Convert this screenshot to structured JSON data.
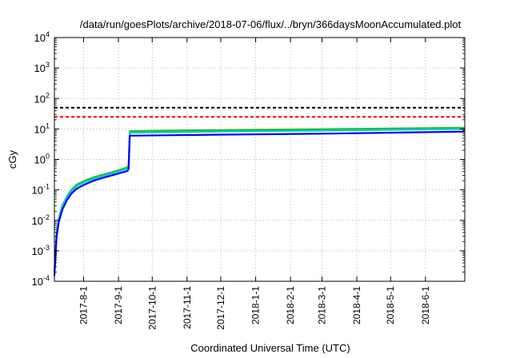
{
  "chart_data": {
    "type": "line",
    "title": "/data/run/goesPlots/archive/2018-07-06/flux/../bryn/366daysMoonAccumulated.plot",
    "xlabel": "Coordinated Universal Time (UTC)",
    "ylabel": "cGy",
    "yscale": "log",
    "ylim": [
      0.0001,
      10000
    ],
    "xlim": [
      "2017-07-06",
      "2018-07-06"
    ],
    "grid": true,
    "y_ticks": [
      {
        "base": "10",
        "exp": "-4",
        "value": 0.0001
      },
      {
        "base": "10",
        "exp": "-3",
        "value": 0.001
      },
      {
        "base": "10",
        "exp": "-2",
        "value": 0.01
      },
      {
        "base": "10",
        "exp": "-1",
        "value": 0.1
      },
      {
        "base": "10",
        "exp": "0",
        "value": 1
      },
      {
        "base": "10",
        "exp": "1",
        "value": 10
      },
      {
        "base": "10",
        "exp": "2",
        "value": 100
      },
      {
        "base": "10",
        "exp": "3",
        "value": 1000
      },
      {
        "base": "10",
        "exp": "4",
        "value": 10000
      }
    ],
    "x_ticks": [
      "2017-8-1",
      "2017-9-1",
      "2017-10-1",
      "2017-11-1",
      "2017-12-1",
      "2018-1-1",
      "2018-2-1",
      "2018-3-1",
      "2018-4-1",
      "2018-5-1",
      "2018-6-1"
    ],
    "reference_lines": [
      {
        "value": 50,
        "color": "#000000",
        "style": "dashed"
      },
      {
        "value": 25,
        "color": "#ff0000",
        "style": "dashed"
      }
    ],
    "series": [
      {
        "color": "#22bb22",
        "x": [
          "2017-07-06",
          "2017-07-08",
          "2017-07-10",
          "2017-07-13",
          "2017-07-17",
          "2017-07-21",
          "2017-07-26",
          "2017-08-02",
          "2017-08-10",
          "2017-08-20",
          "2017-08-30",
          "2017-09-09",
          "2017-09-10",
          "2017-09-11",
          "2017-10-10",
          "2017-12-01",
          "2018-03-01",
          "2018-07-06"
        ],
        "y": [
          0.0002,
          0.004,
          0.012,
          0.03,
          0.06,
          0.1,
          0.15,
          0.2,
          0.26,
          0.33,
          0.42,
          0.55,
          0.7,
          8.5,
          8.8,
          9.2,
          9.8,
          11
        ]
      },
      {
        "color": "#00cccc",
        "x": [
          "2017-07-06",
          "2017-07-08",
          "2017-07-10",
          "2017-07-13",
          "2017-07-17",
          "2017-07-21",
          "2017-07-26",
          "2017-08-02",
          "2017-08-10",
          "2017-08-20",
          "2017-08-30",
          "2017-09-09",
          "2017-09-10",
          "2017-09-11",
          "2017-10-10",
          "2017-12-01",
          "2018-03-01",
          "2018-07-06"
        ],
        "y": [
          0.00018,
          0.0035,
          0.011,
          0.027,
          0.055,
          0.09,
          0.135,
          0.18,
          0.23,
          0.3,
          0.38,
          0.5,
          0.62,
          7.5,
          7.8,
          8.2,
          8.8,
          10
        ]
      },
      {
        "color": "#0000ff",
        "x": [
          "2017-07-06",
          "2017-07-08",
          "2017-07-10",
          "2017-07-13",
          "2017-07-17",
          "2017-07-21",
          "2017-07-26",
          "2017-08-02",
          "2017-08-10",
          "2017-08-20",
          "2017-08-30",
          "2017-09-09",
          "2017-09-10",
          "2017-09-11",
          "2017-10-10",
          "2017-12-01",
          "2018-03-01",
          "2018-07-06"
        ],
        "y": [
          0.00015,
          0.003,
          0.009,
          0.022,
          0.045,
          0.075,
          0.11,
          0.15,
          0.2,
          0.26,
          0.33,
          0.42,
          0.5,
          6.0,
          6.2,
          6.5,
          7.0,
          8.2
        ]
      }
    ]
  }
}
